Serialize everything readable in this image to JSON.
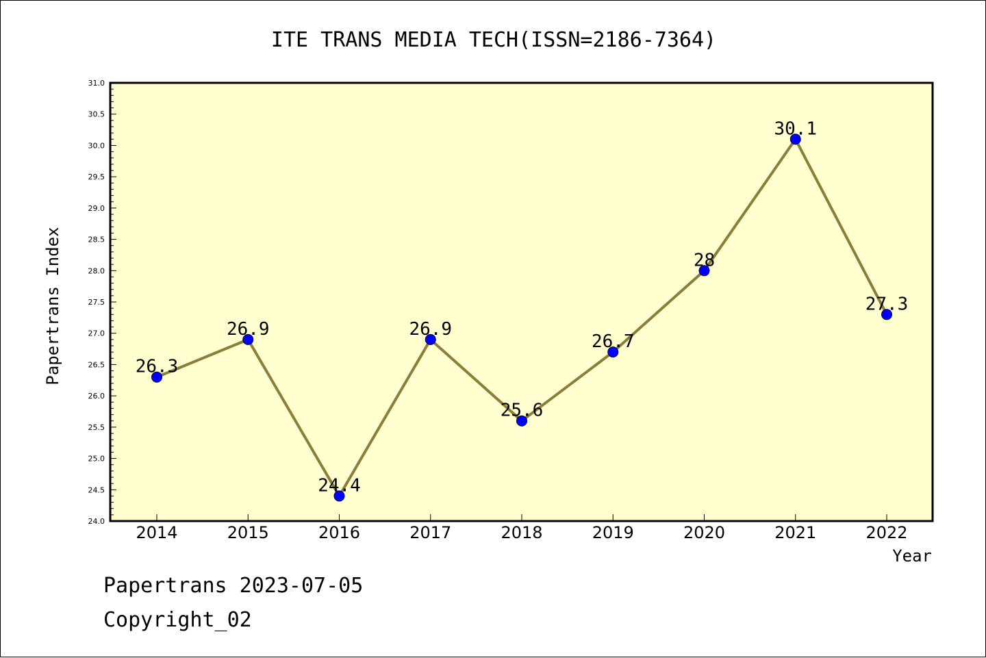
{
  "chart_data": {
    "type": "line",
    "title": "ITE TRANS MEDIA TECH(ISSN=2186-7364)",
    "xlabel": "Year",
    "ylabel": "Papertrans Index",
    "x": [
      "2014",
      "2015",
      "2016",
      "2017",
      "2018",
      "2019",
      "2020",
      "2021",
      "2022"
    ],
    "values": [
      26.3,
      26.9,
      24.4,
      26.9,
      25.6,
      26.7,
      28.0,
      30.1,
      27.3
    ],
    "value_labels": [
      "26.3",
      "26.9",
      "24.4",
      "26.9",
      "25.6",
      "26.7",
      "28",
      "30.1",
      "27.3"
    ],
    "ylim": [
      24.0,
      31.0
    ],
    "yticks": [
      "24.0",
      "24.5",
      "25.0",
      "25.5",
      "26.0",
      "26.5",
      "27.0",
      "27.5",
      "28.0",
      "28.5",
      "29.0",
      "29.5",
      "30.0",
      "30.5",
      "31.0"
    ],
    "grid": false,
    "legend": "none",
    "colors": {
      "plot_background": "#FFFFD0",
      "line": "#8B7D3A",
      "marker": "#0000FF"
    }
  },
  "footer": {
    "line1": "Papertrans 2023-07-05",
    "line2": "Copyright_02"
  }
}
